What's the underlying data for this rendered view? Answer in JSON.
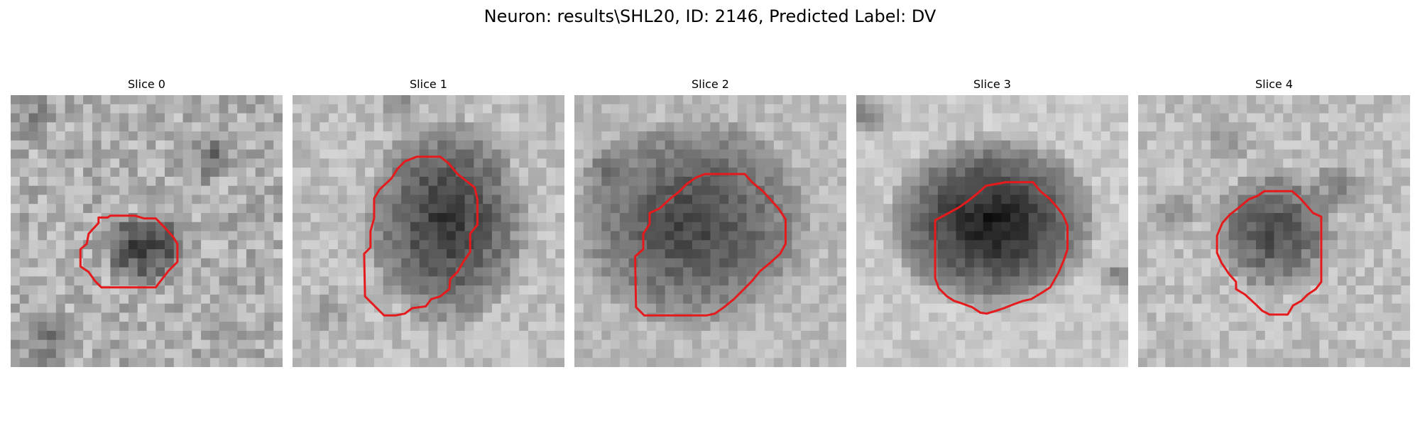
{
  "figure": {
    "title": "Neuron: results\\SHL20, ID: 2146, Predicted Label: DV"
  },
  "panels": [
    {
      "title": "Slice 0"
    },
    {
      "title": "Slice 1"
    },
    {
      "title": "Slice 2"
    },
    {
      "title": "Slice 3"
    },
    {
      "title": "Slice 4"
    }
  ],
  "colors": {
    "background": "#ffffff",
    "text": "#000000",
    "contour": "#e41a1c",
    "colormap": "gray"
  }
}
